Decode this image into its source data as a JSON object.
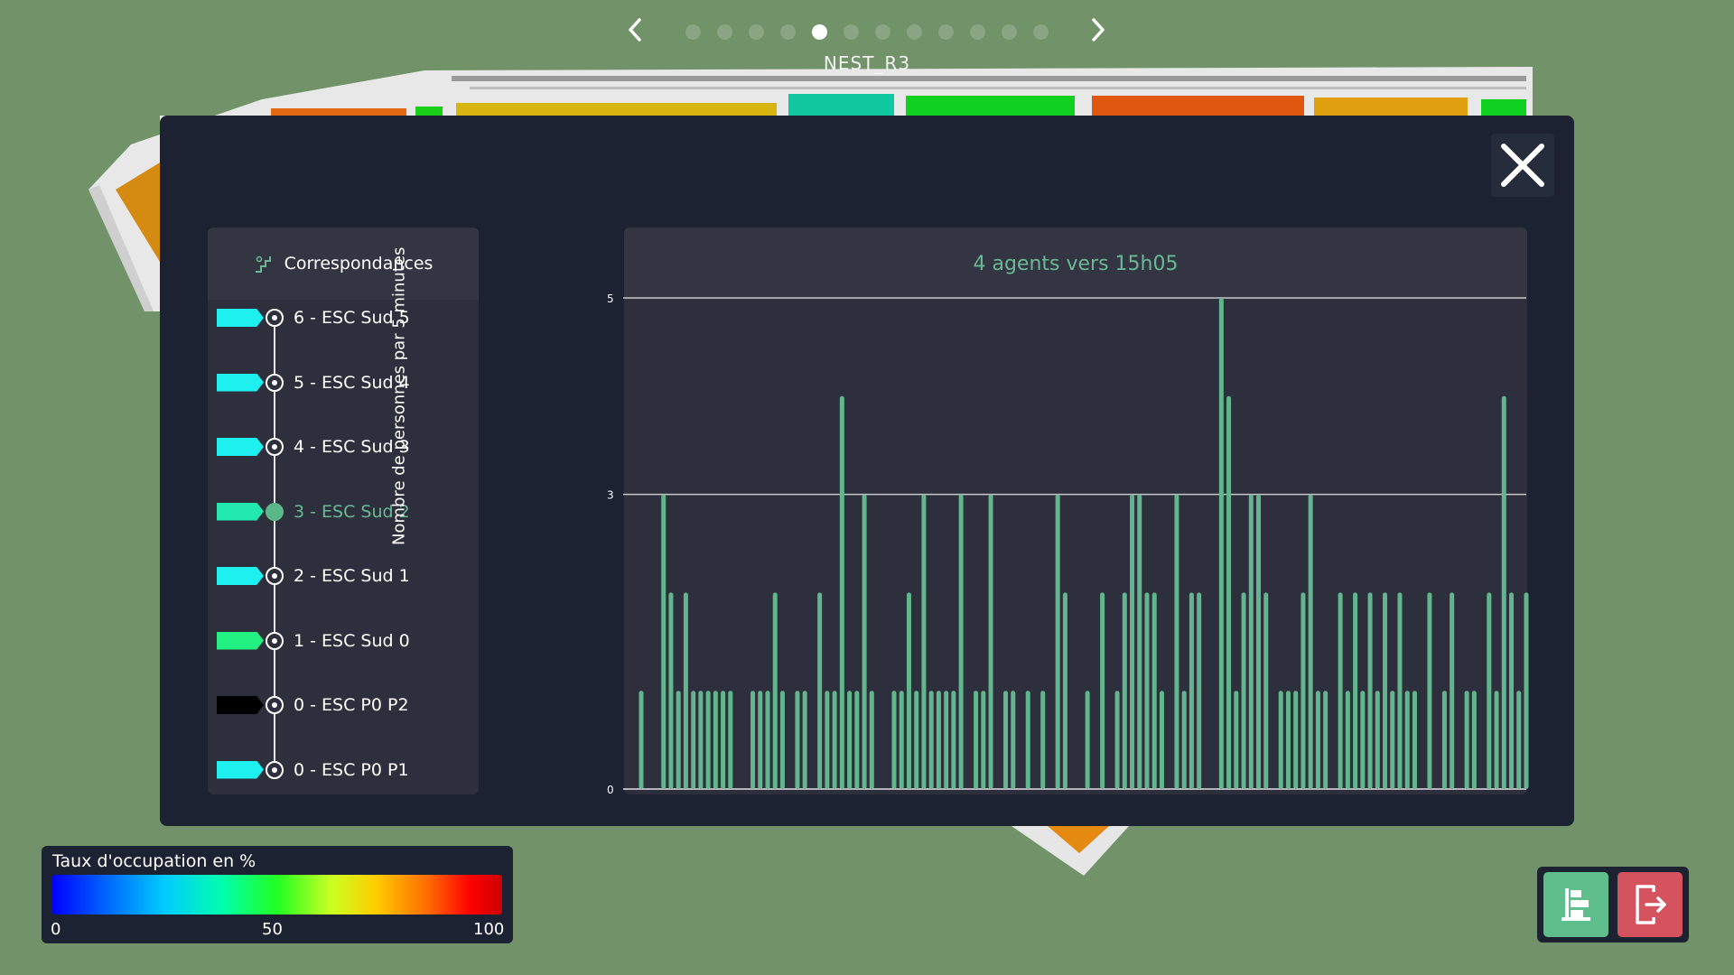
{
  "floor_nav": {
    "floor_label": "NEST_R3",
    "dots_count": 12,
    "active_index": 4
  },
  "panel": {
    "header": "Correspondances",
    "items": [
      {
        "label": "6 - ESC Sud 5",
        "color": "#1ef0f0",
        "active": false
      },
      {
        "label": "5 - ESC Sud 4",
        "color": "#1ef0f0",
        "active": false
      },
      {
        "label": "4 - ESC Sud 3",
        "color": "#1ef0f0",
        "active": false
      },
      {
        "label": "3 - ESC Sud 2",
        "color": "#22e8b0",
        "active": true
      },
      {
        "label": "2 - ESC Sud 1",
        "color": "#1ef0f0",
        "active": false
      },
      {
        "label": "1 - ESC Sud 0",
        "color": "#22f080",
        "active": false
      },
      {
        "label": "0 - ESC P0 P2",
        "color": "#000000",
        "active": false
      },
      {
        "label": "0 - ESC P0 P1",
        "color": "#1ef0f0",
        "active": false
      }
    ]
  },
  "chart": {
    "title": "4 agents vers 15h05",
    "ylabel": "Nombre de personnes par 5 minutes"
  },
  "chart_data": {
    "type": "bar",
    "y_ticks": [
      0,
      3,
      5
    ],
    "ylim": [
      0,
      5
    ],
    "grid_y": [
      3,
      5
    ],
    "bar_color": "#62b58c",
    "values": [
      1,
      0,
      0,
      3,
      2,
      1,
      2,
      1,
      1,
      1,
      1,
      1,
      1,
      0,
      0,
      1,
      1,
      1,
      2,
      1,
      0,
      1,
      1,
      0,
      2,
      1,
      1,
      4,
      1,
      1,
      3,
      1,
      0,
      0,
      1,
      1,
      2,
      1,
      3,
      1,
      1,
      1,
      1,
      3,
      0,
      1,
      1,
      3,
      0,
      1,
      1,
      0,
      1,
      0,
      1,
      0,
      3,
      2,
      0,
      0,
      1,
      0,
      2,
      0,
      1,
      2,
      3,
      3,
      2,
      2,
      1,
      0,
      3,
      1,
      2,
      2,
      0,
      0,
      5,
      4,
      1,
      2,
      3,
      3,
      2,
      0,
      1,
      1,
      1,
      2,
      3,
      1,
      1,
      0,
      2,
      1,
      2,
      1,
      2,
      1,
      2,
      1,
      2,
      1,
      1,
      0,
      2,
      0,
      1,
      2,
      0,
      1,
      1,
      0,
      2,
      1,
      4,
      2,
      1,
      2
    ]
  },
  "legend": {
    "title": "Taux d'occupation en %",
    "ticks": [
      "0",
      "50",
      "100"
    ]
  }
}
